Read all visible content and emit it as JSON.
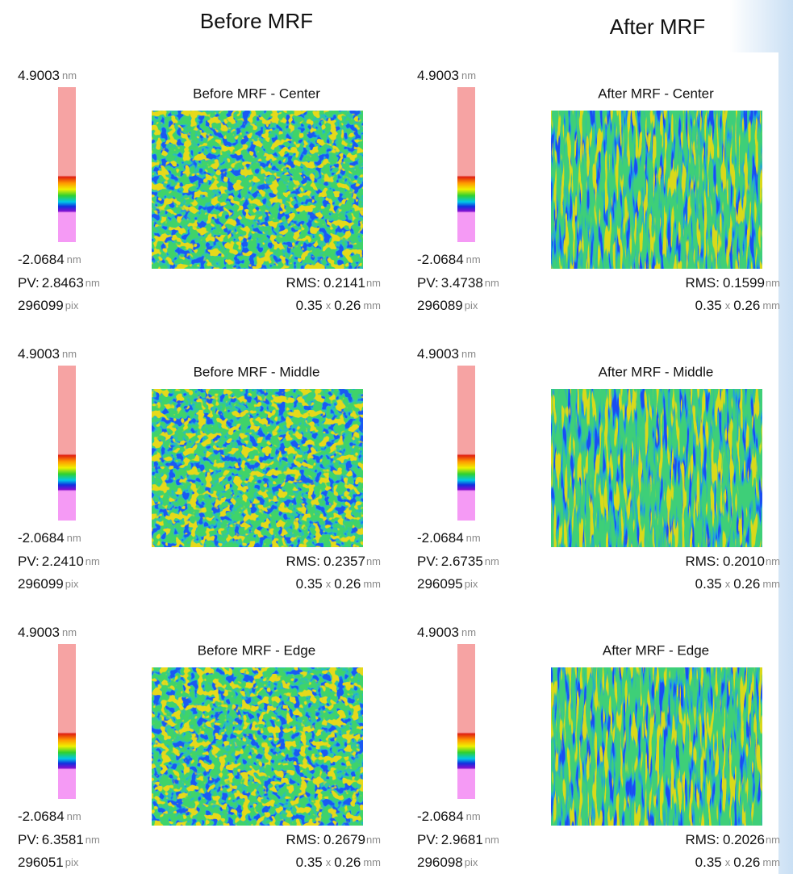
{
  "columns": [
    {
      "header": "Before MRF",
      "panels": [
        {
          "title": "Before MRF - Center",
          "scale_max": {
            "value": "4.9003",
            "unit": "nm"
          },
          "scale_min": {
            "value": "-2.0684",
            "unit": "nm"
          },
          "pv": {
            "label": "PV:",
            "value": "2.8463",
            "unit": "nm"
          },
          "rms": {
            "label": "RMS:",
            "value": "0.2141",
            "unit": "nm"
          },
          "pixels": {
            "value": "296099",
            "unit": "pix"
          },
          "size": {
            "width": "0.35",
            "by": "x",
            "height": "0.26",
            "unit": "mm"
          }
        },
        {
          "title": "Before MRF - Middle",
          "scale_max": {
            "value": "4.9003",
            "unit": "nm"
          },
          "scale_min": {
            "value": "-2.0684",
            "unit": "nm"
          },
          "pv": {
            "label": "PV:",
            "value": "2.2410",
            "unit": "nm"
          },
          "rms": {
            "label": "RMS:",
            "value": "0.2357",
            "unit": "nm"
          },
          "pixels": {
            "value": "296099",
            "unit": "pix"
          },
          "size": {
            "width": "0.35",
            "by": "x",
            "height": "0.26",
            "unit": "mm"
          }
        },
        {
          "title": "Before MRF - Edge",
          "scale_max": {
            "value": "4.9003",
            "unit": "nm"
          },
          "scale_min": {
            "value": "-2.0684",
            "unit": "nm"
          },
          "pv": {
            "label": "PV:",
            "value": "6.3581",
            "unit": "nm"
          },
          "rms": {
            "label": "RMS:",
            "value": "0.2679",
            "unit": "nm"
          },
          "pixels": {
            "value": "296051",
            "unit": "pix"
          },
          "size": {
            "width": "0.35",
            "by": "x",
            "height": "0.26",
            "unit": "mm"
          }
        }
      ]
    },
    {
      "header": "After MRF",
      "panels": [
        {
          "title": "After MRF - Center",
          "scale_max": {
            "value": "4.9003",
            "unit": "nm"
          },
          "scale_min": {
            "value": "-2.0684",
            "unit": "nm"
          },
          "pv": {
            "label": "PV:",
            "value": "3.4738",
            "unit": "nm"
          },
          "rms": {
            "label": "RMS:",
            "value": "0.1599",
            "unit": "nm"
          },
          "pixels": {
            "value": "296089",
            "unit": "pix"
          },
          "size": {
            "width": "0.35",
            "by": "x",
            "height": "0.26",
            "unit": "mm"
          }
        },
        {
          "title": "After MRF - Middle",
          "scale_max": {
            "value": "4.9003",
            "unit": "nm"
          },
          "scale_min": {
            "value": "-2.0684",
            "unit": "nm"
          },
          "pv": {
            "label": "PV:",
            "value": "2.6735",
            "unit": "nm"
          },
          "rms": {
            "label": "RMS:",
            "value": "0.2010",
            "unit": "nm"
          },
          "pixels": {
            "value": "296095",
            "unit": "pix"
          },
          "size": {
            "width": "0.35",
            "by": "x",
            "height": "0.26",
            "unit": "mm"
          }
        },
        {
          "title": "After MRF - Edge",
          "scale_max": {
            "value": "4.9003",
            "unit": "nm"
          },
          "scale_min": {
            "value": "-2.0684",
            "unit": "nm"
          },
          "pv": {
            "label": "PV:",
            "value": "2.9681",
            "unit": "nm"
          },
          "rms": {
            "label": "RMS:",
            "value": "0.2026",
            "unit": "nm"
          },
          "pixels": {
            "value": "296098",
            "unit": "pix"
          },
          "size": {
            "width": "0.35",
            "by": "x",
            "height": "0.26",
            "unit": "mm"
          }
        }
      ]
    }
  ]
}
